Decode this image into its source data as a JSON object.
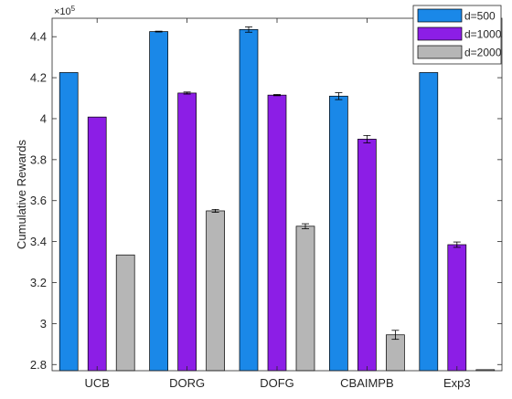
{
  "chart_data": {
    "type": "bar",
    "title": "",
    "xlabel": "",
    "ylabel": "Cumulative Rewards",
    "y_exponent": "×10",
    "y_exponent_power": "5",
    "categories": [
      "UCB",
      "DORG",
      "DOFG",
      "CBAIMPB",
      "Exp3"
    ],
    "ylim": [
      2.77,
      4.49
    ],
    "yticks": [
      2.8,
      3,
      3.2,
      3.4,
      3.6,
      3.8,
      4,
      4.2,
      4.4
    ],
    "ytick_labels": [
      "2.8",
      "3",
      "3.2",
      "3.4",
      "3.6",
      "3.8",
      "4",
      "4.2",
      "4.4"
    ],
    "grid": false,
    "legend_position": "top-right",
    "series": [
      {
        "name": "d=500",
        "color": "#1a88e8",
        "values": [
          4.225,
          4.425,
          4.435,
          4.11,
          4.225
        ],
        "errors": [
          0.0,
          0.002,
          0.013,
          0.017,
          0.0
        ]
      },
      {
        "name": "d=1000",
        "color": "#8c1ee6",
        "values": [
          4.008,
          4.125,
          4.115,
          3.9,
          3.385
        ],
        "errors": [
          0.0,
          0.005,
          0.003,
          0.018,
          0.013
        ]
      },
      {
        "name": "d=2000",
        "color": "#b6b6b6",
        "values": [
          3.335,
          3.55,
          3.475,
          2.945,
          2.775
        ],
        "errors": [
          0.0,
          0.007,
          0.012,
          0.022,
          0.0
        ]
      }
    ]
  }
}
